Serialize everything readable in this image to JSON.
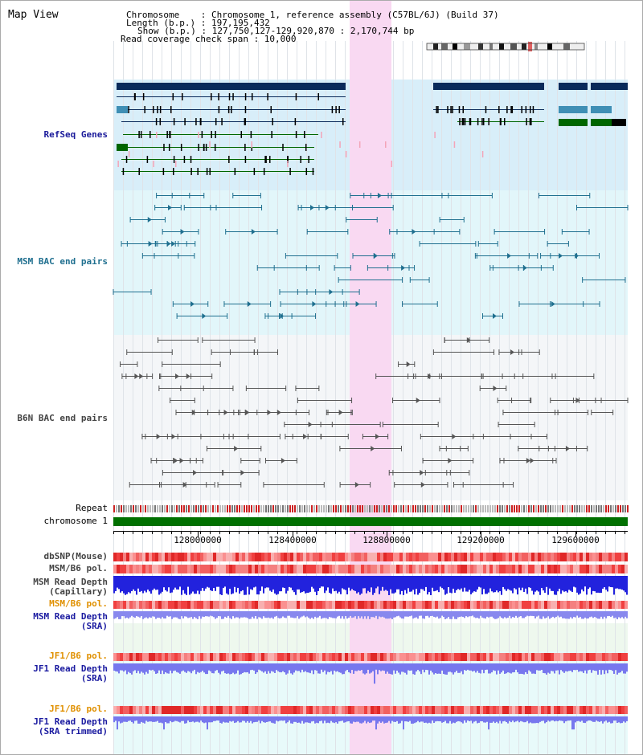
{
  "view": {
    "title": "Map View",
    "chromosome_line": "Chromosome    : Chromosome 1, reference assembly (C57BL/6J) (Build 37)",
    "length_line": "Length (b.p.) : 197,195,432",
    "show_line": "Show (b.p.) : 127,750,127-129,920,870 : 2,170,744 bp",
    "coverage_line": "Read coverage check span : 10,000"
  },
  "tracks": {
    "refseq": "RefSeq Genes",
    "msm_bac": "MSM BAC end pairs",
    "b6n_bac": "B6N BAC end pairs",
    "repeat": "Repeat",
    "chrom": "chromosome 1",
    "dbsnp": "dbSNP(Mouse)",
    "msm_b6_pol": "MSM/B6 pol.",
    "msm_depth_cap_1": "MSM Read Depth",
    "msm_depth_cap_2": "(Capillary)",
    "msm_b6_pol2": "MSM/B6 pol.",
    "msm_depth_sra_1": "MSM Read Depth",
    "msm_depth_sra_2": "(SRA)",
    "jf1_pol": "JF1/B6 pol.",
    "jf1_depth_1": "JF1 Read Depth",
    "jf1_depth_2": "(SRA)",
    "jf1_pol2": "JF1/B6 pol.",
    "jf1_trim_1": "JF1 Read Depth",
    "jf1_trim_2": "(SRA trimmed)"
  },
  "axis": {
    "ticks": [
      "128000000",
      "128400000",
      "128800000",
      "129200000",
      "129600000"
    ]
  },
  "colors": {
    "gene_dark": "#0a2a5a",
    "gene_mid": "#3f8fb5",
    "gene_green": "#006600",
    "msm_bac": "#1f6f8f",
    "b6n_bac": "#555555",
    "highlight": "#f9d9f2",
    "chrom_green": "#007000",
    "depth_blue": "#2222dd",
    "depth_violet": "#7777ee"
  }
}
